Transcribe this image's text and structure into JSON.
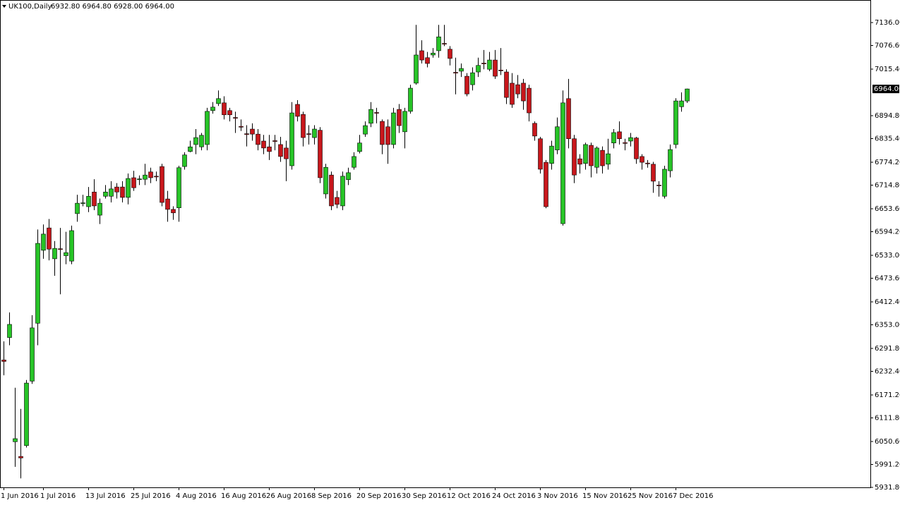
{
  "chart_data": {
    "type": "candlestick",
    "title": "UK100,Daily",
    "ohlc_label": "6932.80 6964.80 6928.00 6964.00",
    "last_price_label": "6964.00",
    "categories": [
      "1 Jun 2016",
      null,
      null,
      null,
      null,
      null,
      null,
      "1 Jul 2016",
      null,
      null,
      null,
      null,
      null,
      null,
      null,
      "13 Jul 2016",
      null,
      null,
      null,
      null,
      null,
      null,
      null,
      "25 Jul 2016",
      null,
      null,
      null,
      null,
      null,
      null,
      null,
      "4 Aug 2016",
      null,
      null,
      null,
      null,
      null,
      null,
      null,
      "16 Aug 2016",
      null,
      null,
      null,
      null,
      null,
      null,
      null,
      "26 Aug 2016",
      null,
      null,
      null,
      null,
      null,
      null,
      null,
      "8 Sep 2016",
      null,
      null,
      null,
      null,
      null,
      null,
      null,
      "20 Sep 2016",
      null,
      null,
      null,
      null,
      null,
      null,
      null,
      "30 Sep 2016",
      null,
      null,
      null,
      null,
      null,
      null,
      null,
      "12 Oct 2016",
      null,
      null,
      null,
      null,
      null,
      null,
      null,
      "24 Oct 2016",
      null,
      null,
      null,
      null,
      null,
      null,
      null,
      "3 Nov 2016",
      null,
      null,
      null,
      null,
      null,
      null,
      null,
      "15 Nov 2016",
      null,
      null,
      null,
      null,
      null,
      null,
      null,
      "25 Nov 2016",
      null,
      null,
      null,
      null,
      null,
      null,
      null,
      "7 Dec 2016",
      null,
      null
    ],
    "open": [
      6262,
      6320,
      6050,
      6012,
      6040,
      6207,
      6357,
      6546,
      6604,
      6524,
      6550,
      6532,
      6518,
      6641,
      6668,
      6659,
      6697,
      6637,
      6686,
      6686,
      6710,
      6710,
      6683,
      6734,
      6729,
      6730,
      6749,
      6738,
      6763,
      6679,
      6652,
      6656,
      6763,
      6802,
      6820,
      6814,
      6820,
      6908,
      6926,
      6928,
      6908,
      6890,
      6867,
      6848,
      6860,
      6847,
      6829,
      6814,
      6830,
      6820,
      6811,
      6765,
      6924,
      6898,
      6848,
      6838,
      6857,
      6692,
      6741,
      6683,
      6661,
      6729,
      6761,
      6802,
      6847,
      6875,
      6903,
      6880,
      6866,
      6820,
      6911,
      6853,
      6906,
      6979,
      7063,
      7045,
      7052,
      7063,
      7082,
      7067,
      7007,
      7010,
      6997,
      6975,
      7008,
      7031,
      7015,
      7039,
      7013,
      7008,
      6979,
      6975,
      6979,
      6966,
      6875,
      6835,
      6774,
      6771,
      6806,
      6615,
      6939,
      6835,
      6783,
      6771,
      6818,
      6761,
      6805,
      6769,
      6824,
      6853,
      6825,
      6829,
      6837,
      6789,
      6772,
      6769,
      6715,
      6686,
      6752,
      6820,
      6918,
      6932.8
    ],
    "high": [
      6310,
      6385,
      6190,
      6135,
      6210,
      6378,
      6600,
      6613,
      6627,
      6570,
      6604,
      6594,
      6610,
      6690,
      6690,
      6710,
      6730,
      6680,
      6715,
      6725,
      6720,
      6725,
      6745,
      6752,
      6740,
      6770,
      6760,
      6750,
      6770,
      6700,
      6660,
      6765,
      6800,
      6830,
      6860,
      6850,
      6915,
      6930,
      6960,
      6945,
      6915,
      6905,
      6885,
      6870,
      6875,
      6860,
      6845,
      6845,
      6845,
      6840,
      6830,
      6930,
      6935,
      6905,
      6870,
      6870,
      6865,
      6770,
      6750,
      6700,
      6750,
      6760,
      6800,
      6845,
      6880,
      6930,
      6915,
      6885,
      6885,
      6915,
      6925,
      6915,
      6975,
      7130,
      7090,
      7060,
      7070,
      7130,
      7130,
      7075,
      7045,
      7030,
      7005,
      7020,
      7045,
      7065,
      7060,
      7065,
      7070,
      7015,
      7005,
      7000,
      6990,
      6975,
      6880,
      6840,
      6780,
      6830,
      6890,
      6960,
      6990,
      6845,
      6795,
      6825,
      6825,
      6815,
      6815,
      6835,
      6860,
      6880,
      6835,
      6850,
      6840,
      6795,
      6780,
      6775,
      6725,
      6765,
      6820,
      6940,
      6955,
      6964.8
    ],
    "low": [
      6222,
      6300,
      5985,
      5955,
      6035,
      6200,
      6300,
      6524,
      6520,
      6480,
      6432,
      6510,
      6510,
      6620,
      6660,
      6645,
      6650,
      6614,
      6680,
      6670,
      6680,
      6670,
      6665,
      6700,
      6715,
      6715,
      6720,
      6725,
      6660,
      6620,
      6625,
      6620,
      6755,
      6800,
      6795,
      6805,
      6805,
      6900,
      6920,
      6885,
      6880,
      6850,
      6855,
      6815,
      6830,
      6805,
      6795,
      6780,
      6805,
      6775,
      6725,
      6755,
      6880,
      6815,
      6820,
      6820,
      6720,
      6680,
      6650,
      6655,
      6650,
      6715,
      6755,
      6797,
      6840,
      6865,
      6875,
      6795,
      6770,
      6810,
      6850,
      6810,
      6900,
      6975,
      7030,
      7020,
      7045,
      7045,
      7075,
      7025,
      6950,
      6995,
      6945,
      6960,
      6995,
      7015,
      7010,
      6990,
      7000,
      6925,
      6915,
      6940,
      6910,
      6880,
      6830,
      6745,
      6655,
      6755,
      6795,
      6610,
      6810,
      6720,
      6745,
      6755,
      6735,
      6745,
      6745,
      6755,
      6810,
      6820,
      6805,
      6815,
      6770,
      6755,
      6760,
      6695,
      6685,
      6680,
      6735,
      6810,
      6905,
      6928
    ],
    "close": [
      6258,
      6354,
      6058,
      6008,
      6202,
      6345,
      6564,
      6588,
      6549,
      6551,
      6548,
      6540,
      6597,
      6668,
      6669,
      6686,
      6661,
      6668,
      6697,
      6705,
      6697,
      6683,
      6732,
      6708,
      6731,
      6741,
      6734,
      6736,
      6670,
      6652,
      6643,
      6760,
      6793,
      6814,
      6838,
      6844,
      6906,
      6917,
      6939,
      6897,
      6897,
      6888,
      6865,
      6846,
      6847,
      6820,
      6811,
      6802,
      6828,
      6789,
      6783,
      6902,
      6893,
      6838,
      6846,
      6860,
      6734,
      6761,
      6661,
      6665,
      6738,
      6747,
      6789,
      6824,
      6869,
      6911,
      6901,
      6820,
      6820,
      6902,
      6869,
      6906,
      6966,
      7052,
      7039,
      7030,
      7057,
      7099,
      7080,
      7043,
      7005,
      7017,
      6951,
      7006,
      7025,
      7029,
      7039,
      6997,
      7011,
      6942,
      6924,
      6951,
      6933,
      6902,
      6842,
      6756,
      6659,
      6816,
      6866,
      6928,
      6835,
      6741,
      6769,
      6820,
      6765,
      6811,
      6765,
      6796,
      6851,
      6835,
      6823,
      6838,
      6783,
      6774,
      6770,
      6725,
      6713,
      6756,
      6807,
      6933,
      6933,
      6964
    ],
    "up_color": "#27c427",
    "down_color": "#c8171c",
    "ylim": [
      5931.8,
      7190.8
    ],
    "yticks": [
      {
        "value": 7136,
        "label": "7136.00"
      },
      {
        "value": 7076.6,
        "label": "7076.60"
      },
      {
        "value": 7015.4,
        "label": "7015.40"
      },
      {
        "value": 6894.8,
        "label": "6894.80"
      },
      {
        "value": 6835.4,
        "label": "6835.40"
      },
      {
        "value": 6774.2,
        "label": "6774.20"
      },
      {
        "value": 6714.8,
        "label": "6714.80"
      },
      {
        "value": 6653.6,
        "label": "6653.60"
      },
      {
        "value": 6594.2,
        "label": "6594.20"
      },
      {
        "value": 6533,
        "label": "6533.00"
      },
      {
        "value": 6473.6,
        "label": "6473.60"
      },
      {
        "value": 6412.4,
        "label": "6412.40"
      },
      {
        "value": 6353,
        "label": "6353.00"
      },
      {
        "value": 6291.8,
        "label": "6291.80"
      },
      {
        "value": 6232.4,
        "label": "6232.40"
      },
      {
        "value": 6171.2,
        "label": "6171.20"
      },
      {
        "value": 6111.8,
        "label": "6111.80"
      },
      {
        "value": 6050.6,
        "label": "6050.60"
      },
      {
        "value": 5991.2,
        "label": "5991.20"
      },
      {
        "value": 5931.8,
        "label": "5931.80"
      }
    ],
    "grid": false
  }
}
